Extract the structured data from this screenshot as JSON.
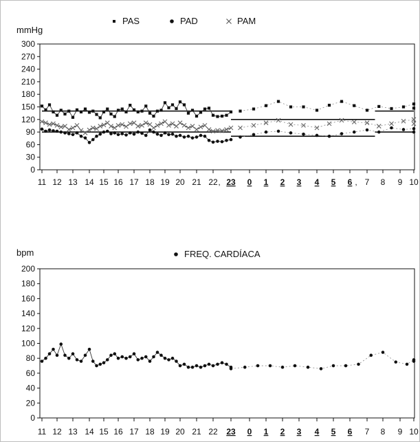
{
  "chart_data": [
    {
      "type": "scatter",
      "ylabel": "mmHg",
      "ylim": [
        0,
        300
      ],
      "yticks": [
        0,
        30,
        60,
        90,
        120,
        150,
        180,
        210,
        240,
        270,
        300
      ],
      "xticks": [
        "11",
        "12",
        "13",
        "14",
        "15",
        "16",
        "17",
        "18",
        "19",
        "20",
        "21",
        "22",
        "23",
        "0",
        "1",
        "2",
        "3",
        "4",
        "5",
        "6",
        "7",
        "8",
        "9",
        "10"
      ],
      "xticks_underlined": [
        "23",
        "0",
        "1",
        "2",
        "3",
        "4",
        "5",
        "6"
      ],
      "xtick_commas_after": [
        "22",
        "6"
      ],
      "legend": [
        {
          "name": "PAS",
          "marker": "square"
        },
        {
          "name": "PAD",
          "marker": "dot"
        },
        {
          "name": "PAM",
          "marker": "cross"
        }
      ],
      "legend_position": "top",
      "x_unit": "hour index from 11:00 (0 = 11:00, 24 = 11:00 next day)",
      "series": [
        {
          "name": "PAS",
          "marker": "square",
          "connected_solid": true,
          "x": [
            0.0,
            0.25,
            0.5,
            0.75,
            1.0,
            1.25,
            1.5,
            1.75,
            2.0,
            2.25,
            2.5,
            2.75,
            3.0,
            3.25,
            3.5,
            3.75,
            4.0,
            4.25,
            4.5,
            4.75,
            5.0,
            5.25,
            5.5,
            5.75,
            6.0,
            6.25,
            6.5,
            6.75,
            7.0,
            7.25,
            7.5,
            7.75,
            8.0,
            8.25,
            8.5,
            8.75,
            9.0,
            9.25,
            9.5,
            9.75,
            10.0,
            10.25,
            10.5,
            10.75,
            11.0,
            11.25,
            11.5,
            11.75,
            12.0
          ],
          "y": [
            152,
            143,
            155,
            138,
            130,
            142,
            133,
            140,
            125,
            143,
            138,
            145,
            137,
            140,
            132,
            124,
            138,
            145,
            133,
            127,
            142,
            145,
            138,
            154,
            143,
            138,
            140,
            152,
            135,
            128,
            140,
            142,
            160,
            148,
            155,
            146,
            162,
            155,
            135,
            142,
            128,
            137,
            145,
            147,
            130,
            127,
            128,
            130,
            138
          ]
        },
        {
          "name": "PAS",
          "marker": "square",
          "connected_solid": false,
          "x": [
            12.5,
            13.25,
            14.0,
            14.75,
            15.5,
            16.25,
            17.0,
            17.75,
            18.5,
            19.25,
            20.0,
            20.75,
            21.5,
            22.25,
            23.0,
            23.75
          ],
          "y": [
            140,
            145,
            153,
            163,
            150,
            150,
            142,
            154,
            163,
            153,
            142,
            151,
            146,
            150,
            157,
            147
          ]
        },
        {
          "name": "PAD",
          "marker": "dot",
          "connected_solid": true,
          "x": [
            0.0,
            0.25,
            0.5,
            0.75,
            1.0,
            1.25,
            1.5,
            1.75,
            2.0,
            2.25,
            2.5,
            2.75,
            3.0,
            3.25,
            3.5,
            3.75,
            4.0,
            4.25,
            4.5,
            4.75,
            5.0,
            5.25,
            5.5,
            5.75,
            6.0,
            6.25,
            6.5,
            6.75,
            7.0,
            7.25,
            7.5,
            7.75,
            8.0,
            8.25,
            8.5,
            8.75,
            9.0,
            9.25,
            9.5,
            9.75,
            10.0,
            10.25,
            10.5,
            10.75,
            11.0,
            11.25,
            11.5,
            11.75,
            12.0
          ],
          "y": [
            97,
            92,
            95,
            93,
            92,
            90,
            88,
            86,
            84,
            88,
            80,
            76,
            65,
            72,
            80,
            85,
            90,
            92,
            86,
            88,
            84,
            86,
            83,
            88,
            85,
            90,
            87,
            82,
            95,
            90,
            85,
            82,
            88,
            84,
            85,
            80,
            82,
            78,
            80,
            76,
            78,
            82,
            80,
            70,
            66,
            68,
            67,
            70,
            72
          ]
        },
        {
          "name": "PAD",
          "marker": "dot",
          "connected_solid": false,
          "x": [
            12.5,
            13.25,
            14.0,
            14.75,
            15.5,
            16.25,
            17.0,
            17.75,
            18.5,
            19.25,
            20.0,
            20.75,
            21.5,
            22.25,
            23.0,
            23.75
          ],
          "y": [
            78,
            84,
            90,
            92,
            88,
            85,
            82,
            80,
            86,
            90,
            95,
            90,
            100,
            96,
            98,
            90
          ]
        },
        {
          "name": "PAM",
          "marker": "cross",
          "connected_solid": true,
          "x": [
            0.0,
            0.25,
            0.5,
            0.75,
            1.0,
            1.25,
            1.5,
            1.75,
            2.0,
            2.25,
            2.5,
            2.75,
            3.0,
            3.25,
            3.5,
            3.75,
            4.0,
            4.25,
            4.5,
            4.75,
            5.0,
            5.25,
            5.5,
            5.75,
            6.0,
            6.25,
            6.5,
            6.75,
            7.0,
            7.25,
            7.5,
            7.75,
            8.0,
            8.25,
            8.5,
            8.75,
            9.0,
            9.25,
            9.5,
            9.75,
            10.0,
            10.25,
            10.5,
            10.75,
            11.0,
            11.25,
            11.5,
            11.75,
            12.0
          ],
          "y": [
            115,
            112,
            108,
            110,
            106,
            102,
            104,
            96,
            100,
            106,
            94,
            88,
            95,
            100,
            98,
            104,
            107,
            112,
            104,
            100,
            106,
            108,
            103,
            110,
            112,
            104,
            106,
            112,
            108,
            100,
            106,
            110,
            115,
            106,
            110,
            104,
            112,
            106,
            100,
            104,
            96,
            102,
            106,
            96,
            92,
            94,
            93,
            96,
            100
          ]
        },
        {
          "name": "PAM",
          "marker": "cross",
          "connected_solid": false,
          "x": [
            12.5,
            13.25,
            14.0,
            14.75,
            15.5,
            16.25,
            17.0,
            17.75,
            18.5,
            19.25,
            20.0,
            20.75,
            21.5,
            22.25,
            23.0,
            23.75
          ],
          "y": [
            100,
            106,
            112,
            118,
            108,
            106,
            100,
            110,
            118,
            114,
            112,
            104,
            110,
            116,
            120,
            110
          ]
        }
      ],
      "reference_lines": [
        {
          "x": [
            0,
            12
          ],
          "y": 140
        },
        {
          "x": [
            0,
            12
          ],
          "y": 90
        },
        {
          "x": [
            12,
            20.5
          ],
          "y": 120
        },
        {
          "x": [
            12,
            20.5
          ],
          "y": 80
        },
        {
          "x": [
            20.5,
            24
          ],
          "y": 140
        },
        {
          "x": [
            20.5,
            24
          ],
          "y": 90
        }
      ]
    },
    {
      "type": "scatter",
      "ylabel": "bpm",
      "ylim": [
        0,
        200
      ],
      "yticks": [
        0,
        20,
        40,
        60,
        80,
        100,
        120,
        140,
        160,
        180,
        200
      ],
      "xticks": [
        "11",
        "12",
        "13",
        "14",
        "15",
        "16",
        "17",
        "18",
        "19",
        "20",
        "21",
        "22",
        "23",
        "0",
        "1",
        "2",
        "3",
        "4",
        "5",
        "6",
        "7",
        "8",
        "9",
        "10"
      ],
      "xticks_underlined": [
        "23",
        "0",
        "1",
        "2",
        "3",
        "4",
        "5",
        "6"
      ],
      "legend": [
        {
          "name": "FREQ. CARDÍACA",
          "marker": "dot"
        }
      ],
      "legend_position": "top",
      "x_unit": "hour index from 11:00 (0 = 11:00, 24 = 11:00 next day)",
      "series": [
        {
          "name": "FREQ. CARDÍACA",
          "marker": "dot",
          "connected_solid": true,
          "x": [
            0.0,
            0.25,
            0.5,
            0.75,
            1.0,
            1.25,
            1.5,
            1.75,
            2.0,
            2.25,
            2.5,
            2.75,
            3.0,
            3.25,
            3.5,
            3.75,
            4.0,
            4.25,
            4.5,
            4.75,
            5.0,
            5.25,
            5.5,
            5.75,
            6.0,
            6.25,
            6.5,
            6.75,
            7.0,
            7.25,
            7.5,
            7.75,
            8.0,
            8.25,
            8.5,
            8.75,
            9.0,
            9.25,
            9.5,
            9.75,
            10.0,
            10.25,
            10.5,
            10.75,
            11.0,
            11.25,
            11.5,
            11.75,
            12.0
          ],
          "y": [
            76,
            80,
            86,
            92,
            84,
            99,
            84,
            80,
            86,
            78,
            76,
            84,
            92,
            76,
            70,
            72,
            74,
            78,
            84,
            86,
            80,
            82,
            80,
            82,
            86,
            78,
            80,
            82,
            76,
            82,
            88,
            84,
            80,
            78,
            80,
            76,
            70,
            72,
            68,
            68,
            70,
            68,
            70,
            72,
            70,
            72,
            74,
            72,
            68
          ]
        },
        {
          "name": "FREQ. CARDÍACA",
          "marker": "dot",
          "connected_solid": false,
          "x": [
            12.0,
            12.75,
            13.5,
            14.25,
            15.0,
            15.75,
            16.5,
            17.25,
            18.0,
            18.75,
            19.5,
            20.25,
            21.0,
            21.75,
            22.5,
            23.25,
            24.0
          ],
          "y": [
            66,
            68,
            70,
            70,
            68,
            70,
            68,
            66,
            70,
            70,
            72,
            84,
            88,
            75,
            72,
            78,
            76
          ]
        }
      ]
    }
  ]
}
